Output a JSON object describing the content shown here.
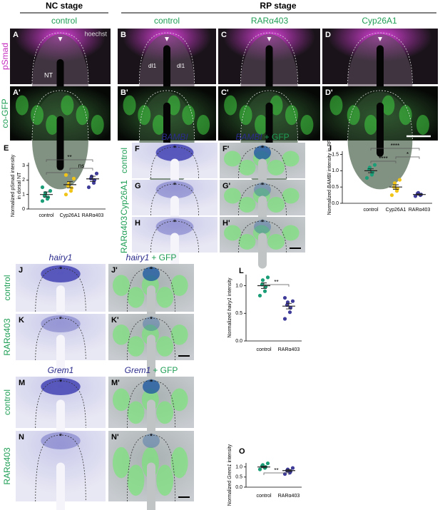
{
  "header": {
    "nc_stage": "NC stage",
    "rp_stage": "RP stage",
    "conditions": [
      "control",
      "control",
      "RARα403",
      "Cyp26A1"
    ]
  },
  "row_labels": [
    "pSmad",
    "co-GFP"
  ],
  "top_panels": [
    [
      "A",
      "B",
      "C",
      "D"
    ],
    [
      "A'",
      "B'",
      "C'",
      "D'"
    ]
  ],
  "annotations": {
    "stain": "hoechst",
    "tube": "NT",
    "neurons": [
      "dI1",
      "dI1"
    ]
  },
  "ish_blocks": [
    {
      "gene": "BAMBI",
      "merge": "+ GFP",
      "rows": [
        {
          "condition": "control",
          "letters": [
            "F",
            "F'"
          ],
          "marker": "*"
        },
        {
          "condition": "Cyp26A1",
          "letters": [
            "G",
            "G'"
          ],
          "marker": "*"
        },
        {
          "condition": "RARα403",
          "letters": [
            "H",
            "H'"
          ],
          "marker": "*"
        }
      ]
    },
    {
      "gene": "hairy1",
      "merge": "+ GFP",
      "rows": [
        {
          "condition": "control",
          "letters": [
            "J",
            "J'"
          ],
          "marker": "*"
        },
        {
          "condition": "RARα403",
          "letters": [
            "K",
            "K'"
          ],
          "marker": "*"
        }
      ]
    },
    {
      "gene": "Grem1",
      "merge": "+ GFP",
      "rows": [
        {
          "condition": "control",
          "letters": [
            "M",
            "M'"
          ],
          "marker": "*"
        },
        {
          "condition": "RARα403",
          "letters": [
            "N",
            "N'"
          ],
          "marker": "*"
        }
      ]
    }
  ],
  "plots": [
    {
      "letter": "E",
      "ylabel": [
        [
          {
            "text": "Normalized pSmad intensity"
          }
        ],
        [
          {
            "text": "in dorsal NT"
          }
        ]
      ],
      "categories": [
        "control",
        "Cyp26A1",
        "RARα403"
      ],
      "colors": [
        "#1b9e77",
        "#f0c419",
        "#3f3d99"
      ],
      "ylim": [
        0,
        3.2
      ],
      "yticks": [
        0,
        1,
        2,
        3
      ],
      "points": [
        [
          0.55,
          0.7,
          0.8,
          0.9,
          1.1,
          1.25,
          1.5
        ],
        [
          1.0,
          1.25,
          1.45,
          1.6,
          1.75,
          2.1,
          2.35
        ],
        [
          1.5,
          1.8,
          2.0,
          2.1,
          2.25,
          2.45
        ]
      ],
      "means": [
        1.0,
        1.68,
        2.08
      ],
      "errors": [
        0.18,
        0.22,
        0.18
      ],
      "stats": [
        {
          "from": 0,
          "to": 1,
          "label": "*"
        },
        {
          "from": 1,
          "to": 2,
          "label": "ns"
        },
        {
          "from": 0,
          "to": 2,
          "label": "**"
        }
      ]
    },
    {
      "letter": "I",
      "ylabel": [
        [
          {
            "text": "Normalized "
          },
          {
            "text": "BAMBI",
            "italic": true
          },
          {
            "text": " intensity in RP"
          }
        ]
      ],
      "categories": [
        "control",
        "Cyp26A1",
        "RARα403"
      ],
      "colors": [
        "#1b9e77",
        "#f0c419",
        "#3f3d99"
      ],
      "ylim": [
        0,
        1.6
      ],
      "yticks": [
        {
          "value": 0,
          "label": "0.0"
        },
        {
          "value": 0.5,
          "label": "0.5"
        },
        {
          "value": 1,
          "label": "1.0"
        },
        {
          "value": 1.5,
          "label": "1.5"
        }
      ],
      "points": [
        [
          0.78,
          0.88,
          0.95,
          1.05,
          1.1,
          1.18
        ],
        [
          0.25,
          0.38,
          0.45,
          0.5,
          0.62,
          0.72
        ],
        [
          0.22,
          0.25,
          0.27,
          0.3,
          0.32
        ]
      ],
      "means": [
        1.0,
        0.5,
        0.27
      ],
      "errors": [
        0.06,
        0.07,
        0.02
      ],
      "stats": [
        {
          "from": 0,
          "to": 1,
          "label": "****"
        },
        {
          "from": 1,
          "to": 2,
          "label": "*"
        },
        {
          "from": 0,
          "to": 2,
          "label": "****"
        }
      ]
    },
    {
      "letter": "L",
      "ylabel": [
        [
          {
            "text": "Normalized "
          },
          {
            "text": "hairy1",
            "italic": true
          },
          {
            "text": " intensity"
          }
        ]
      ],
      "categories": [
        "control",
        "RARα403"
      ],
      "colors": [
        "#1b9e77",
        "#3f3d99"
      ],
      "ylim": [
        0,
        1.2
      ],
      "yticks": [
        {
          "value": 0,
          "label": "0.0"
        },
        {
          "value": 0.5,
          "label": "0.5"
        },
        {
          "value": 1,
          "label": "1.0"
        }
      ],
      "points": [
        [
          0.82,
          0.9,
          0.98,
          1.02,
          1.1,
          1.15
        ],
        [
          0.4,
          0.52,
          0.6,
          0.65,
          0.7,
          0.72,
          0.78
        ]
      ],
      "means": [
        1.0,
        0.63
      ],
      "errors": [
        0.05,
        0.05
      ],
      "stats": [
        {
          "from": 0,
          "to": 1,
          "label": "**"
        }
      ]
    },
    {
      "letter": "O",
      "ylabel": [
        [
          {
            "text": "Normalized "
          },
          {
            "text": "Grem1",
            "italic": true
          },
          {
            "text": " intensity"
          }
        ]
      ],
      "categories": [
        "control",
        "RARα403"
      ],
      "colors": [
        "#1b9e77",
        "#3f3d99"
      ],
      "ylim": [
        0,
        1.2
      ],
      "yticks": [
        {
          "value": 0,
          "label": "0.0"
        },
        {
          "value": 0.5,
          "label": "0.5"
        },
        {
          "value": 1,
          "label": "1.0"
        }
      ],
      "points": [
        [
          0.88,
          0.95,
          1.0,
          1.05,
          1.1,
          1.18
        ],
        [
          0.65,
          0.72,
          0.78,
          0.82,
          0.88,
          0.95
        ]
      ],
      "means": [
        1.0,
        0.82
      ],
      "errors": [
        0.04,
        0.05
      ],
      "stats": [
        {
          "from": 0,
          "to": 1,
          "label": "**"
        }
      ]
    }
  ]
}
